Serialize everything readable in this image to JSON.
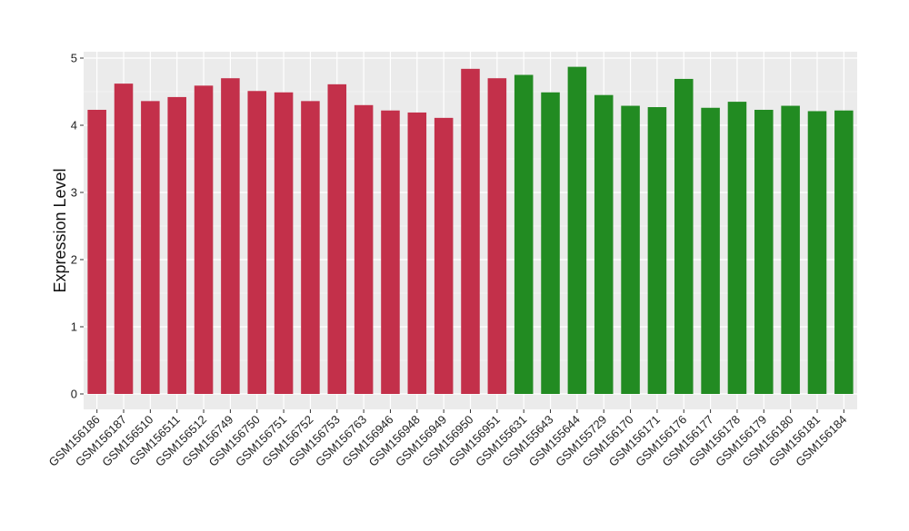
{
  "chart_data": {
    "type": "bar",
    "title": "",
    "xlabel": "",
    "ylabel": "Expression Level",
    "ylim": [
      0,
      5
    ],
    "yticks": [
      0,
      1,
      2,
      3,
      4,
      5
    ],
    "grid": true,
    "legend": "none",
    "colors": {
      "group1": "#c3304a",
      "group2": "#228b22",
      "panel": "#ebebeb",
      "grid": "#ffffff"
    },
    "categories": [
      "GSM156186",
      "GSM156187",
      "GSM156510",
      "GSM156511",
      "GSM156512",
      "GSM156749",
      "GSM156750",
      "GSM156751",
      "GSM156752",
      "GSM156753",
      "GSM156763",
      "GSM156946",
      "GSM156948",
      "GSM156949",
      "GSM156950",
      "GSM156951",
      "GSM155631",
      "GSM155643",
      "GSM155644",
      "GSM155729",
      "GSM156170",
      "GSM156171",
      "GSM156176",
      "GSM156177",
      "GSM156178",
      "GSM156179",
      "GSM156180",
      "GSM156181",
      "GSM156184"
    ],
    "values": [
      4.23,
      4.62,
      4.36,
      4.42,
      4.59,
      4.7,
      4.51,
      4.49,
      4.36,
      4.61,
      4.3,
      4.22,
      4.19,
      4.11,
      4.84,
      4.7,
      4.75,
      4.49,
      4.87,
      4.45,
      4.29,
      4.27,
      4.69,
      4.26,
      4.35,
      4.23,
      4.29,
      4.21,
      4.22
    ],
    "groups": [
      1,
      1,
      1,
      1,
      1,
      1,
      1,
      1,
      1,
      1,
      1,
      1,
      1,
      1,
      1,
      1,
      2,
      2,
      2,
      2,
      2,
      2,
      2,
      2,
      2,
      2,
      2,
      2,
      2
    ]
  }
}
